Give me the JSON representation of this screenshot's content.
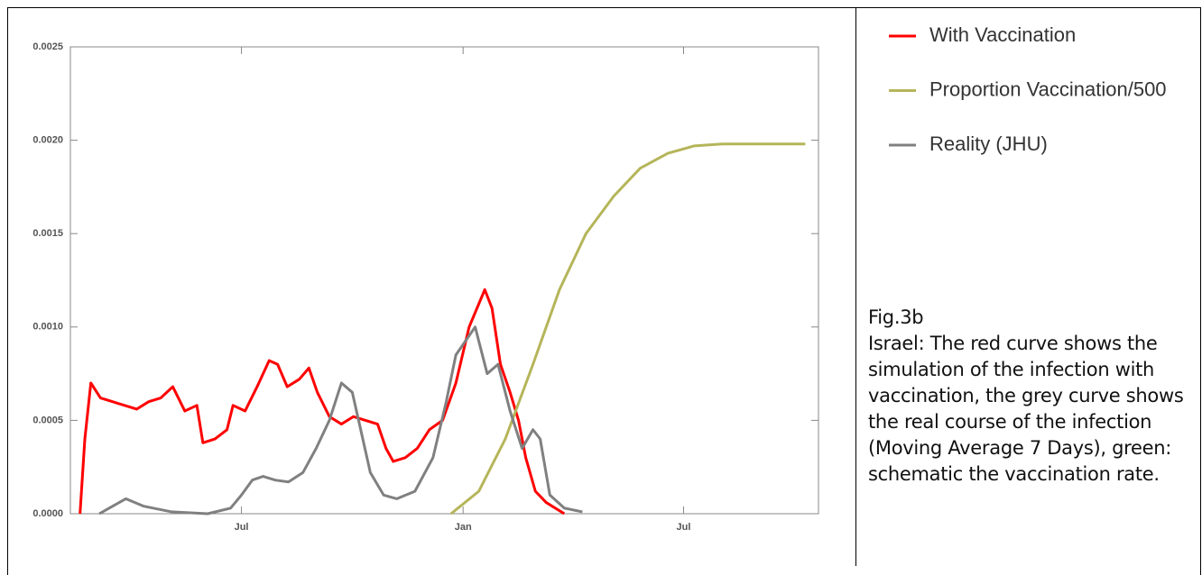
{
  "chart_data": {
    "type": "line",
    "xlim": [
      0,
      621
    ],
    "xticks": [
      {
        "value": 142,
        "label": "Jul"
      },
      {
        "value": 326,
        "label": "Jan"
      },
      {
        "value": 509,
        "label": "Jul"
      }
    ],
    "ylim": [
      0,
      0.0025
    ],
    "yticks": [
      {
        "value": 0,
        "label": "0.0000"
      },
      {
        "value": 0.0005,
        "label": "0.0005"
      },
      {
        "value": 0.001,
        "label": "0.0010"
      },
      {
        "value": 0.0015,
        "label": "0.0015"
      },
      {
        "value": 0.002,
        "label": "0.0020"
      },
      {
        "value": 0.0025,
        "label": "0.0025"
      }
    ],
    "grid": false,
    "series": [
      {
        "name": "With Vaccination",
        "color": "#ff0000",
        "x": [
          8,
          12,
          17,
          25,
          35,
          45,
          55,
          65,
          75,
          85,
          95,
          105,
          110,
          120,
          130,
          135,
          145,
          155,
          165,
          172,
          180,
          190,
          198,
          205,
          215,
          225,
          235,
          245,
          255,
          262,
          268,
          278,
          288,
          298,
          309,
          320,
          331,
          344,
          350,
          357,
          365,
          372,
          378,
          386,
          395,
          410
        ],
        "values": [
          0,
          0.0004,
          0.0007,
          0.00062,
          0.0006,
          0.00058,
          0.00056,
          0.0006,
          0.00062,
          0.00068,
          0.00055,
          0.00058,
          0.00038,
          0.0004,
          0.00045,
          0.00058,
          0.00055,
          0.00068,
          0.00082,
          0.0008,
          0.00068,
          0.00072,
          0.00078,
          0.00065,
          0.00052,
          0.00048,
          0.00052,
          0.0005,
          0.00048,
          0.00035,
          0.00028,
          0.0003,
          0.00035,
          0.00045,
          0.0005,
          0.0007,
          0.001,
          0.0012,
          0.0011,
          0.0008,
          0.00065,
          0.0005,
          0.0003,
          0.00012,
          6e-05,
          0
        ]
      },
      {
        "name": "Proportion Vaccination/500",
        "color": "#b5b55a",
        "x": [
          316,
          339,
          361,
          384,
          406,
          428,
          451,
          473,
          496,
          518,
          541,
          610
        ],
        "values": [
          0,
          0.00012,
          0.0004,
          0.0008,
          0.0012,
          0.0015,
          0.0017,
          0.00185,
          0.00193,
          0.00197,
          0.00198,
          0.00198
        ]
      },
      {
        "name": "Reality (JHU)",
        "color": "#808080",
        "x": [
          24,
          46,
          61,
          84,
          114,
          133,
          142,
          151,
          160,
          170,
          181,
          193,
          204,
          215,
          225,
          234,
          241,
          249,
          260,
          271,
          286,
          301,
          312,
          320,
          336,
          346,
          355,
          365,
          375,
          384,
          390,
          398,
          410,
          425
        ],
        "values": [
          0,
          8e-05,
          4e-05,
          1e-05,
          0,
          3e-05,
          0.0001,
          0.00018,
          0.0002,
          0.00018,
          0.00017,
          0.00022,
          0.00035,
          0.0005,
          0.0007,
          0.00065,
          0.00045,
          0.00022,
          0.0001,
          8e-05,
          0.00012,
          0.0003,
          0.0006,
          0.00085,
          0.001,
          0.00075,
          0.0008,
          0.00055,
          0.00035,
          0.00045,
          0.0004,
          0.0001,
          3e-05,
          1e-05
        ]
      }
    ],
    "caption": {
      "title": "Fig.3b",
      "text": "Israel: The red curve shows the simulation of the infection with vaccination, the grey curve shows the real course of the infection (Moving Average 7 Days), green: schematic the vaccination rate."
    }
  }
}
